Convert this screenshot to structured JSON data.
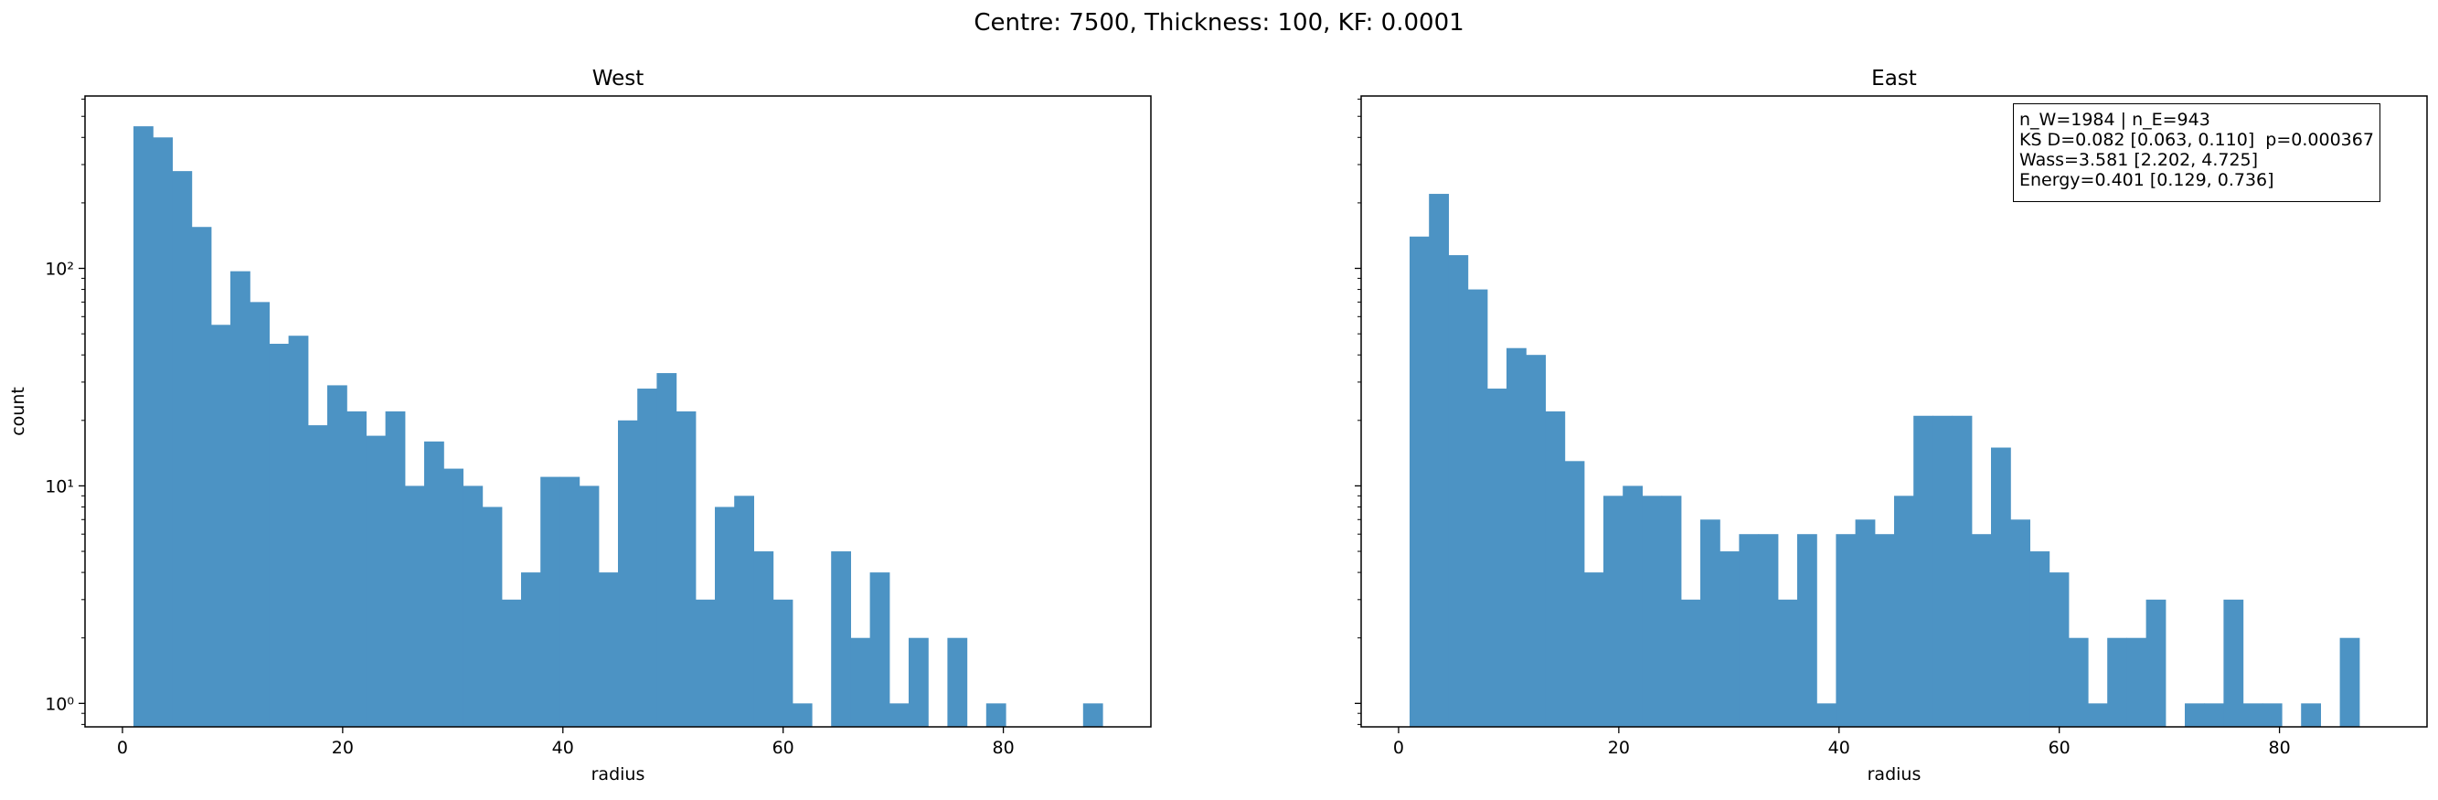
{
  "figure": {
    "suptitle": "Centre: 7500, Thickness: 100, KF: 0.0001"
  },
  "colors": {
    "bar": "#4c93c4"
  },
  "stats_box": {
    "line1": "n_W=1984 | n_E=943",
    "line2": "KS D=0.082 [0.063, 0.110]  p=0.000367",
    "line3": "Wass=3.581 [2.202, 4.725]",
    "line4": "Energy=0.401 [0.129, 0.736]"
  },
  "chart_data": [
    {
      "type": "bar",
      "title": "West",
      "xlabel": "radius",
      "ylabel": "count",
      "yscale": "log",
      "xlim": [
        -3.4,
        93.4
      ],
      "ylim": [
        0.78,
        620
      ],
      "xticks": [
        0,
        20,
        40,
        60,
        80
      ],
      "yticks": [
        {
          "value": 1,
          "label": "10⁰"
        },
        {
          "value": 10,
          "label": "10¹"
        },
        {
          "value": 100,
          "label": "10²"
        }
      ],
      "bin_start": 1.0,
      "bin_width": 1.76,
      "values": [
        450,
        400,
        280,
        155,
        55,
        97,
        70,
        45,
        49,
        19,
        29,
        22,
        17,
        22,
        10,
        16,
        12,
        10,
        8,
        3,
        4,
        11,
        11,
        10,
        4,
        20,
        28,
        33,
        22,
        3,
        8,
        9,
        5,
        3,
        1,
        0,
        5,
        2,
        4,
        1,
        2,
        0,
        2,
        0,
        1,
        0,
        0,
        0,
        0,
        1
      ]
    },
    {
      "type": "bar",
      "title": "East",
      "xlabel": "radius",
      "ylabel": "",
      "yscale": "log",
      "xlim": [
        -3.4,
        93.4
      ],
      "ylim": [
        0.78,
        620
      ],
      "xticks": [
        0,
        20,
        40,
        60,
        80
      ],
      "yticks": [
        {
          "value": 1,
          "label": ""
        },
        {
          "value": 10,
          "label": ""
        },
        {
          "value": 100,
          "label": ""
        }
      ],
      "bin_start": 1.0,
      "bin_width": 1.76,
      "values": [
        140,
        220,
        115,
        80,
        28,
        43,
        40,
        22,
        13,
        4,
        9,
        10,
        9,
        9,
        3,
        7,
        5,
        6,
        6,
        3,
        6,
        1,
        6,
        7,
        6,
        9,
        21,
        21,
        21,
        6,
        15,
        7,
        5,
        4,
        2,
        1,
        2,
        2,
        3,
        0,
        1,
        1,
        3,
        1,
        1,
        0,
        1,
        0,
        2,
        0
      ]
    }
  ]
}
